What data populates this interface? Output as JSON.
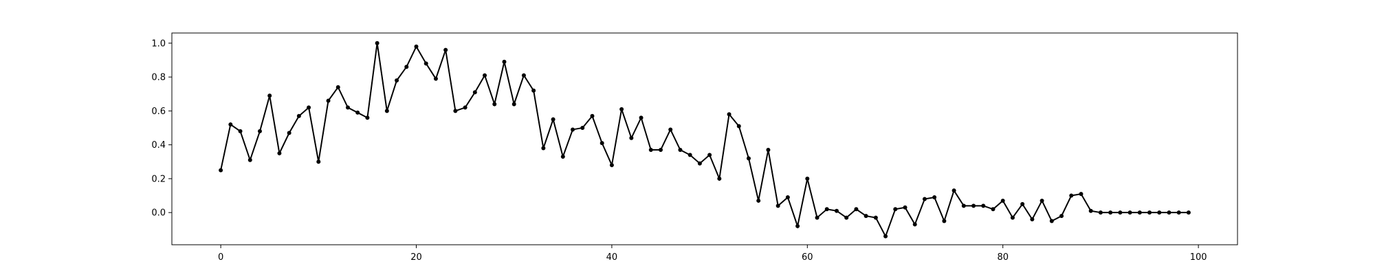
{
  "chart_data": {
    "type": "line",
    "title": "",
    "xlabel": "",
    "ylabel": "",
    "xlim": [
      -5,
      104
    ],
    "ylim": [
      -0.19,
      1.06
    ],
    "grid": false,
    "x_ticks": [
      0,
      20,
      40,
      60,
      80,
      100
    ],
    "x_tick_labels": [
      "0",
      "20",
      "40",
      "60",
      "80",
      "100"
    ],
    "y_ticks": [
      0.0,
      0.2,
      0.4,
      0.6,
      0.8,
      1.0
    ],
    "y_tick_labels": [
      "0.0",
      "0.2",
      "0.4",
      "0.6",
      "0.8",
      "1.0"
    ],
    "series": [
      {
        "color": "#000000",
        "marker": "dot",
        "x": [
          0,
          1,
          2,
          3,
          4,
          5,
          6,
          7,
          8,
          9,
          10,
          11,
          12,
          13,
          14,
          15,
          16,
          17,
          18,
          19,
          20,
          21,
          22,
          23,
          24,
          25,
          26,
          27,
          28,
          29,
          30,
          31,
          32,
          33,
          34,
          35,
          36,
          37,
          38,
          39,
          40,
          41,
          42,
          43,
          44,
          45,
          46,
          47,
          48,
          49,
          50,
          51,
          52,
          53,
          54,
          55,
          56,
          57,
          58,
          59,
          60,
          61,
          62,
          63,
          64,
          65,
          66,
          67,
          68,
          69,
          70,
          71,
          72,
          73,
          74,
          75,
          76,
          77,
          78,
          79,
          80,
          81,
          82,
          83,
          84,
          85,
          86,
          87,
          88,
          89,
          90,
          91,
          92,
          93,
          94,
          95,
          96,
          97,
          98,
          99
        ],
        "values": [
          0.25,
          0.52,
          0.48,
          0.31,
          0.48,
          0.69,
          0.35,
          0.47,
          0.57,
          0.62,
          0.3,
          0.66,
          0.74,
          0.62,
          0.59,
          0.56,
          1.0,
          0.6,
          0.78,
          0.86,
          0.98,
          0.88,
          0.79,
          0.96,
          0.6,
          0.62,
          0.71,
          0.81,
          0.64,
          0.89,
          0.64,
          0.81,
          0.72,
          0.38,
          0.55,
          0.33,
          0.49,
          0.5,
          0.57,
          0.41,
          0.28,
          0.61,
          0.44,
          0.56,
          0.37,
          0.37,
          0.49,
          0.37,
          0.34,
          0.29,
          0.34,
          0.2,
          0.58,
          0.51,
          0.32,
          0.07,
          0.37,
          0.04,
          0.09,
          -0.08,
          0.2,
          -0.03,
          0.02,
          0.01,
          -0.03,
          0.02,
          -0.02,
          -0.03,
          -0.14,
          0.02,
          0.03,
          -0.07,
          0.08,
          0.09,
          -0.05,
          0.13,
          0.04,
          0.04,
          0.04,
          0.02,
          0.07,
          -0.03,
          0.05,
          -0.04,
          0.07,
          -0.05,
          -0.02,
          0.1,
          0.11,
          0.01,
          0.0,
          0.0,
          0.0,
          0.0,
          0.0,
          0.0,
          0.0,
          0.0,
          0.0,
          0.0
        ]
      }
    ]
  }
}
